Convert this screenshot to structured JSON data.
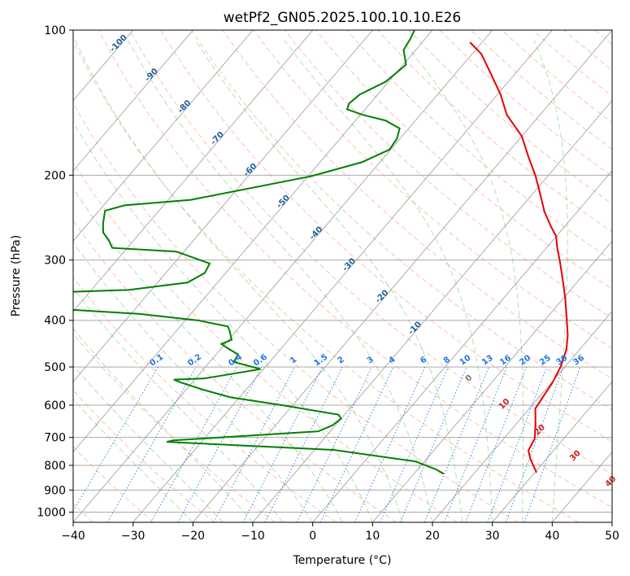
{
  "chart_data": {
    "type": "line",
    "diagram": "skew-T log-P",
    "title": "wetPf2_GN05.2025.100.10.10.E26",
    "xlabel": "Temperature (°C)",
    "ylabel": "Pressure (hPa)",
    "xlim": [
      -40,
      50
    ],
    "ylim": [
      1050,
      100
    ],
    "y_scale": "log",
    "x_ticks": [
      "−40",
      "−30",
      "−20",
      "−10",
      "0",
      "10",
      "20",
      "30",
      "40",
      "50"
    ],
    "y_ticks": [
      "100",
      "200",
      "300",
      "400",
      "500",
      "600",
      "700",
      "800",
      "900",
      "1000"
    ],
    "grid": true,
    "series": [
      {
        "kind": "temperature",
        "color": "#e60000",
        "points": [
          [
            30.3,
            828
          ],
          [
            27.3,
            775
          ],
          [
            25.8,
            745
          ],
          [
            25.2,
            705
          ],
          [
            23.3,
            658
          ],
          [
            21.0,
            610
          ],
          [
            20.5,
            568
          ],
          [
            20.2,
            540
          ],
          [
            19.3,
            500
          ],
          [
            17.8,
            460
          ],
          [
            16.0,
            430
          ],
          [
            13.3,
            395
          ],
          [
            10.3,
            360
          ],
          [
            7.3,
            330
          ],
          [
            4.3,
            303
          ],
          [
            1.8,
            283
          ],
          [
            0.0,
            268
          ],
          [
            -2.2,
            256
          ],
          [
            -5.5,
            238
          ],
          [
            -8.5,
            220
          ],
          [
            -12.0,
            201
          ],
          [
            -16.0,
            183
          ],
          [
            -20.0,
            166
          ],
          [
            -25.5,
            150
          ],
          [
            -29.5,
            136
          ],
          [
            -34.5,
            122
          ],
          [
            -38.5,
            112
          ],
          [
            -42.0,
            106
          ]
        ]
      },
      {
        "kind": "dewpoint",
        "color": "#008000",
        "points": [
          [
            15.0,
            833
          ],
          [
            13.0,
            815
          ],
          [
            8.5,
            785
          ],
          [
            -6.8,
            743
          ],
          [
            -35.8,
            715
          ],
          [
            -34.9,
            710
          ],
          [
            -12.0,
            680
          ],
          [
            -10.5,
            661
          ],
          [
            -10.0,
            640
          ],
          [
            -11.0,
            628
          ],
          [
            -21.8,
            600
          ],
          [
            -31.5,
            578
          ],
          [
            -37.0,
            558
          ],
          [
            -42.0,
            538
          ],
          [
            -43.5,
            531
          ],
          [
            -38.5,
            528
          ],
          [
            -30.5,
            505
          ],
          [
            -36.0,
            488
          ],
          [
            -36.3,
            471
          ],
          [
            -38.8,
            458
          ],
          [
            -40.6,
            448
          ],
          [
            -39.5,
            439
          ],
          [
            -41.0,
            422
          ],
          [
            -42.0,
            412
          ],
          [
            -48.0,
            400
          ],
          [
            -58.5,
            388
          ],
          [
            -77.5,
            376
          ],
          [
            -75.5,
            350
          ],
          [
            -63.8,
            346
          ],
          [
            -55.0,
            334
          ],
          [
            -53.5,
            319
          ],
          [
            -54.0,
            305
          ],
          [
            -61.3,
            288
          ],
          [
            -72.5,
            283
          ],
          [
            -74.0,
            274
          ],
          [
            -76.2,
            263
          ],
          [
            -77.5,
            252
          ],
          [
            -79.0,
            237
          ],
          [
            -76.5,
            231
          ],
          [
            -66.2,
            225
          ],
          [
            -49.5,
            201
          ],
          [
            -43.0,
            188
          ],
          [
            -40.2,
            177
          ],
          [
            -40.5,
            168
          ],
          [
            -41.5,
            160
          ],
          [
            -45.0,
            154
          ],
          [
            -49.5,
            150
          ],
          [
            -53.0,
            146
          ],
          [
            -53.5,
            142
          ],
          [
            -53.0,
            136
          ],
          [
            -50.5,
            128
          ],
          [
            -49.5,
            118
          ],
          [
            -52.0,
            110
          ],
          [
            -52.5,
            104
          ],
          [
            -53.0,
            100
          ]
        ]
      }
    ],
    "dry_adiabat_color": "#ff8c66",
    "moist_adiabat_color": "#5cb85c",
    "mixing_ratio_color": "#1f77e6",
    "isotherm_color": "#808080",
    "isotherm_labels": [
      "-100",
      "-90",
      "-80",
      "-70",
      "-60",
      "-50",
      "-40",
      "-30",
      "-20",
      "-10"
    ],
    "mixing_ratio_labels": [
      "0.1",
      "0.2",
      "0.4",
      "0.6",
      "1",
      "1.5",
      "2",
      "3",
      "4",
      "6",
      "8",
      "10",
      "13",
      "16",
      "20",
      "25",
      "30",
      "36"
    ],
    "moist_adiabat_labels": [
      "0",
      "10",
      "20",
      "30",
      "40"
    ]
  }
}
